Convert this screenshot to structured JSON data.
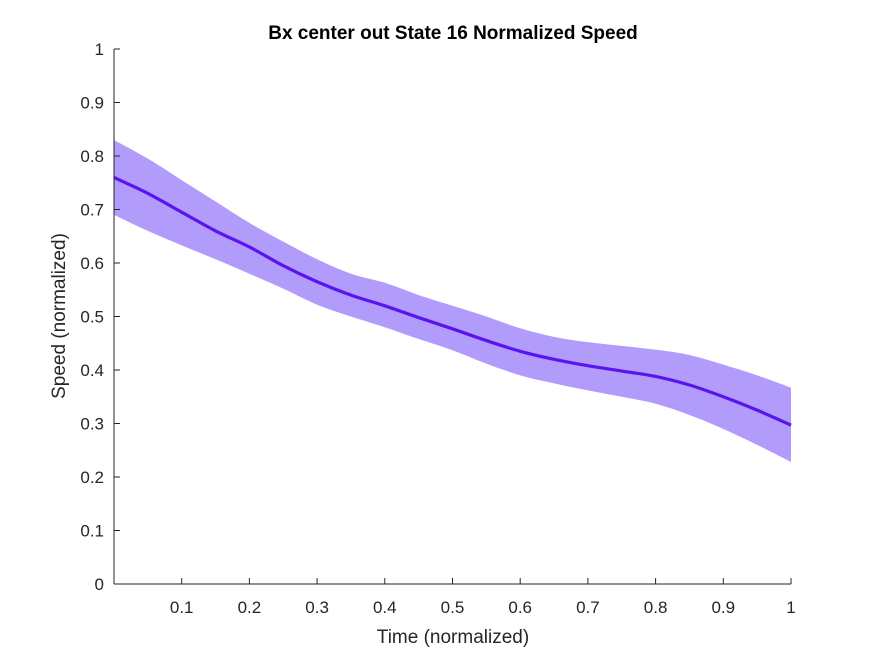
{
  "chart_data": {
    "type": "area",
    "title": "Bx  center out State 16 Normalized Speed",
    "xlabel": "Time (normalized)",
    "ylabel": "Speed (normalized)",
    "xlim": [
      0.0,
      1.0
    ],
    "ylim": [
      0,
      1
    ],
    "xticks": [
      "0.1",
      "0.2",
      "0.3",
      "0.4",
      "0.5",
      "0.6",
      "0.7",
      "0.8",
      "0.9",
      "1"
    ],
    "yticks": [
      "0",
      "0.1",
      "0.2",
      "0.3",
      "0.4",
      "0.5",
      "0.6",
      "0.7",
      "0.8",
      "0.9",
      "1"
    ],
    "grid": false,
    "legend": "none",
    "colors": {
      "line": "#5a14f0",
      "band": "#b19cfb",
      "axis": "#262626"
    },
    "x": [
      0.0,
      0.05,
      0.1,
      0.15,
      0.2,
      0.25,
      0.3,
      0.35,
      0.4,
      0.45,
      0.5,
      0.55,
      0.6,
      0.65,
      0.7,
      0.75,
      0.8,
      0.85,
      0.9,
      0.95,
      1.0
    ],
    "series": [
      {
        "mean": [
          0.76,
          0.73,
          0.695,
          0.66,
          0.63,
          0.595,
          0.565,
          0.54,
          0.52,
          0.498,
          0.477,
          0.455,
          0.435,
          0.42,
          0.408,
          0.398,
          0.388,
          0.372,
          0.35,
          0.325,
          0.297
        ],
        "upper": [
          0.83,
          0.795,
          0.755,
          0.715,
          0.675,
          0.64,
          0.607,
          0.58,
          0.563,
          0.54,
          0.52,
          0.5,
          0.478,
          0.462,
          0.452,
          0.445,
          0.438,
          0.428,
          0.41,
          0.39,
          0.367
        ],
        "lower": [
          0.69,
          0.66,
          0.633,
          0.607,
          0.58,
          0.552,
          0.522,
          0.5,
          0.48,
          0.458,
          0.437,
          0.412,
          0.39,
          0.375,
          0.362,
          0.35,
          0.337,
          0.316,
          0.29,
          0.26,
          0.228
        ]
      }
    ]
  }
}
